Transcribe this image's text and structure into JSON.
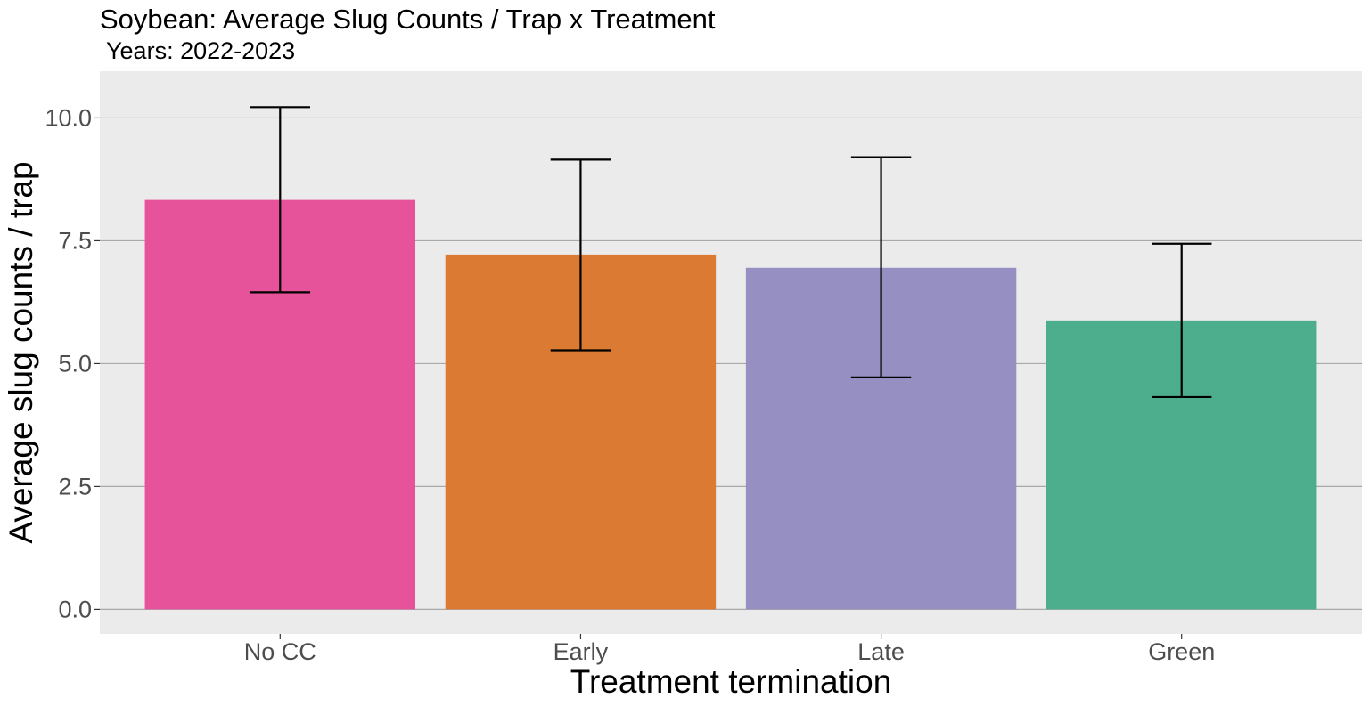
{
  "chart_data": {
    "type": "bar",
    "title": "Soybean: Average Slug Counts / Trap x Treatment",
    "subtitle": " Years: 2022-2023",
    "xlabel": "Treatment termination",
    "ylabel": "Average slug counts / trap",
    "categories": [
      "No CC",
      "Early",
      "Late",
      "Green"
    ],
    "values": [
      8.33,
      7.22,
      6.95,
      5.88
    ],
    "error_low": [
      6.45,
      5.27,
      4.72,
      4.32
    ],
    "error_high": [
      10.22,
      9.15,
      9.2,
      7.44
    ],
    "colors": [
      "#E7539B",
      "#DB7A33",
      "#9690C2",
      "#4CAE8D"
    ],
    "ylim": [
      -0.5,
      10.95
    ],
    "yticks": [
      0.0,
      2.5,
      5.0,
      7.5,
      10.0
    ],
    "ytick_labels": [
      "0.0",
      "2.5",
      "5.0",
      "7.5",
      "10.0"
    ],
    "grid": true,
    "legend": "none"
  }
}
